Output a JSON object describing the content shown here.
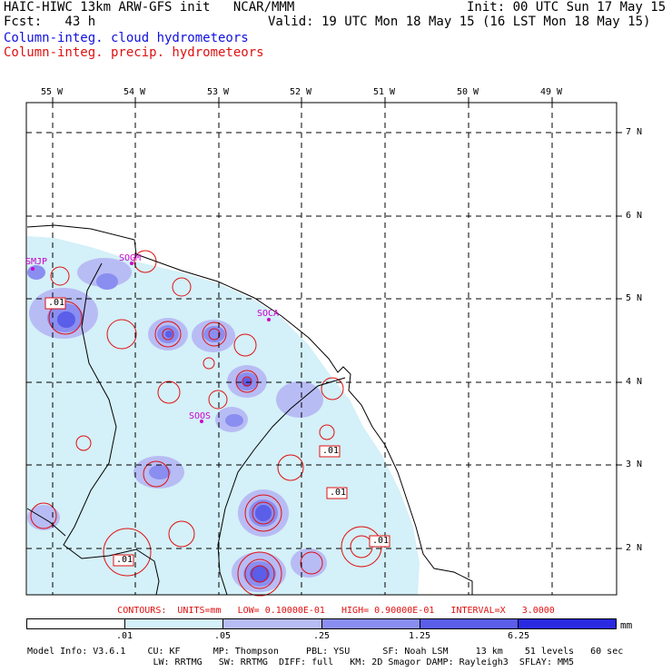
{
  "header": {
    "title": "HAIC-HIWC 13km ARW-GFS init   NCAR/MMM",
    "init": "Init: 00 UTC Sun 17 May 15",
    "fcst": "Fcst:   43 h",
    "valid": "Valid: 19 UTC Mon 18 May 15 (16 LST Mon 18 May 15)",
    "field1": "Column-integ. cloud hydrometeors",
    "field2": "Column-integ. precip. hydrometeors"
  },
  "colors": {
    "cloud_field": "#1010e0",
    "precip_field": "#e01010",
    "shade_1": "#d4f0f8",
    "shade_2": "#b8bcf4",
    "shade_3": "#8a8ef0",
    "shade_4": "#5a5ee8",
    "shade_5": "#2a2ae0",
    "station": "#cc00cc"
  },
  "axes": {
    "lon_labels": [
      "55 W",
      "54 W",
      "53 W",
      "52 W",
      "51 W",
      "50 W",
      "49 W"
    ],
    "lat_labels": [
      "7 N",
      "6 N",
      "5 N",
      "4 N",
      "3 N",
      "2 N"
    ]
  },
  "stations": [
    "SMJP",
    "SOGM",
    "SOCA",
    "SOOS"
  ],
  "contour_labels": [
    ".01",
    ".01",
    ".01",
    ".01",
    ".01"
  ],
  "contours_info": "CONTOURS:  UNITS=mm   LOW= 0.10000E-01   HIGH= 0.90000E-01   INTERVAL=X   3.0000",
  "colorbar": {
    "ticks": [
      ".01",
      ".05",
      ".25",
      "1.25",
      "6.25"
    ],
    "unit": "mm"
  },
  "footer": {
    "line1": "Model Info: V3.6.1    CU: KF      MP: Thompson     PBL: YSU      SF: Noah LSM     13 km    51 levels   60 sec",
    "line2": "                       LW: RRTMG   SW: RRTMG  DIFF: full   KM: 2D Smagor DAMP: Rayleigh3  SFLAY: MM5"
  }
}
